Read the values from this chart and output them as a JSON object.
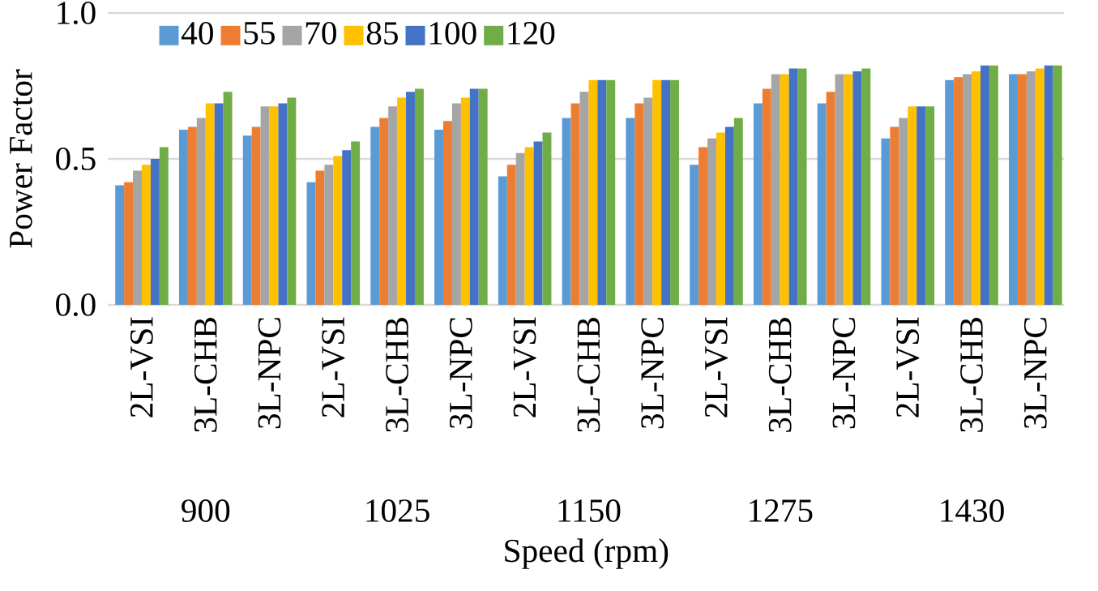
{
  "chart_data": {
    "type": "bar",
    "xlabel": "Speed (rpm)",
    "ylabel": "Power Factor",
    "categories": [
      "2L-VSI",
      "3L-CHB",
      "3L-NPC",
      "2L-VSI",
      "3L-CHB",
      "3L-NPC",
      "2L-VSI",
      "3L-CHB",
      "3L-NPC",
      "2L-VSI",
      "3L-CHB",
      "3L-NPC",
      "2L-VSI",
      "3L-CHB",
      "3L-NPC"
    ],
    "annotations": [
      "900",
      "1025",
      "1150",
      "1275",
      "1430"
    ],
    "ylim": [
      0,
      1
    ],
    "yticks": [
      {
        "value": 0,
        "label": "0.0"
      },
      0.5,
      {
        "value": 1,
        "label": "1.0"
      }
    ],
    "grid": "y",
    "legend": "top left",
    "series": [
      {
        "name": "40",
        "color": "#5b9bd5",
        "values": [
          0.41,
          0.6,
          0.58,
          0.42,
          0.61,
          0.6,
          0.44,
          0.64,
          0.64,
          0.48,
          0.69,
          0.69,
          0.57,
          0.77,
          0.79
        ]
      },
      {
        "name": "55",
        "color": "#ed7d31",
        "values": [
          0.42,
          0.61,
          0.61,
          0.46,
          0.64,
          0.63,
          0.48,
          0.69,
          0.69,
          0.54,
          0.74,
          0.73,
          0.61,
          0.78,
          0.79
        ]
      },
      {
        "name": "70",
        "color": "#a5a5a5",
        "values": [
          0.46,
          0.64,
          0.68,
          0.48,
          0.68,
          0.69,
          0.52,
          0.73,
          0.71,
          0.57,
          0.79,
          0.79,
          0.64,
          0.79,
          0.8
        ]
      },
      {
        "name": "85",
        "color": "#ffc000",
        "values": [
          0.48,
          0.69,
          0.68,
          0.51,
          0.71,
          0.71,
          0.54,
          0.77,
          0.77,
          0.59,
          0.79,
          0.79,
          0.68,
          0.8,
          0.81
        ]
      },
      {
        "name": "100",
        "color": "#4472c4",
        "values": [
          0.5,
          0.69,
          0.69,
          0.53,
          0.73,
          0.74,
          0.56,
          0.77,
          0.77,
          0.61,
          0.81,
          0.8,
          0.68,
          0.82,
          0.82
        ]
      },
      {
        "name": "120",
        "color": "#70ad47",
        "values": [
          0.54,
          0.73,
          0.71,
          0.56,
          0.74,
          0.74,
          0.59,
          0.77,
          0.77,
          0.64,
          0.81,
          0.81,
          0.68,
          0.82,
          0.82
        ]
      }
    ]
  }
}
